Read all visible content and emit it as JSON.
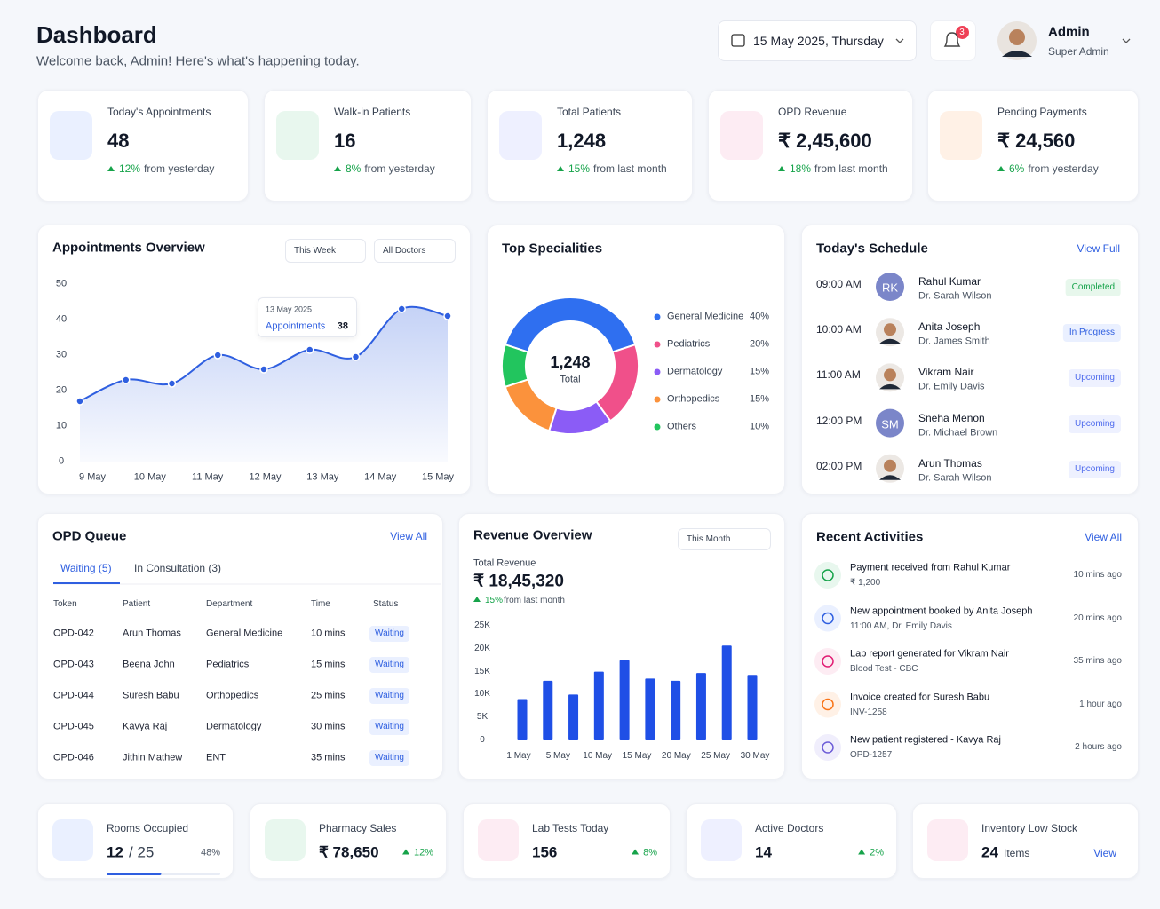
{
  "header": {
    "title": "Dashboard",
    "subtitle": "Welcome back, Admin! Here's what's happening today.",
    "date": "15 May 2025, Thursday",
    "notifications": "3",
    "user_name": "Admin",
    "user_role": "Super Admin"
  },
  "stats": [
    {
      "label": "Today's Appointments",
      "value": "48",
      "change": "12%",
      "note": "from yesterday",
      "icon_color": "#2f5fe0",
      "icon_bg": "#eaf0ff"
    },
    {
      "label": "Walk-in Patients",
      "value": "16",
      "change": "8%",
      "note": "from yesterday",
      "icon_color": "#16a34a",
      "icon_bg": "#e8f7ee"
    },
    {
      "label": "Total Patients",
      "value": "1,248",
      "change": "15%",
      "note": "from last month",
      "icon_color": "#4f46e5",
      "icon_bg": "#eef0ff"
    },
    {
      "label": "OPD Revenue",
      "value": "₹ 2,45,600",
      "change": "18%",
      "note": "from last month",
      "icon_color": "#e11d74",
      "icon_bg": "#fdecf3"
    },
    {
      "label": "Pending Payments",
      "value": "₹ 24,560",
      "change": "6%",
      "note": "from yesterday",
      "icon_color": "#f97316",
      "icon_bg": "#fff1e6"
    }
  ],
  "appointments_overview": {
    "type": "line",
    "title": "Appointments Overview",
    "filters": [
      "This Week",
      "All Doctors"
    ],
    "x_labels": [
      "9 May",
      "10 May",
      "11 May",
      "12 May",
      "13 May",
      "14 May",
      "15 May"
    ],
    "values": [
      17,
      23,
      22,
      30,
      26,
      31.5,
      29.5,
      43,
      41
    ],
    "ylim": [
      0,
      50
    ],
    "yticks": [
      0,
      10,
      20,
      30,
      40,
      50
    ],
    "color": "#2f5fe0",
    "tooltip": {
      "date": "13 May 2025",
      "label": "Appointments",
      "value": "38"
    }
  },
  "top_specialities": {
    "type": "pie",
    "title": "Top Specialities",
    "total": "1,248",
    "total_label": "Total",
    "categories": [
      "General Medicine",
      "Pediatrics",
      "Dermatology",
      "Orthopedics",
      "Others"
    ],
    "values": [
      40,
      20,
      15,
      15,
      10
    ],
    "value_labels": [
      "40%",
      "20%",
      "15%",
      "15%",
      "10%"
    ],
    "colors": [
      "#2f6ff0",
      "#f0508a",
      "#8b5cf6",
      "#fb923c",
      "#22c55e"
    ]
  },
  "schedule": {
    "title": "Today's Schedule",
    "link": "View Full",
    "items": [
      {
        "time": "09:00 AM",
        "initials": "RK",
        "name": "Rahul Kumar",
        "doctor": "Dr. Sarah Wilson",
        "status": "Completed",
        "status_color": "#16a34a",
        "status_bg": "#e7f7ec"
      },
      {
        "time": "10:00 AM",
        "name": "Anita Joseph",
        "doctor": "Dr. James Smith",
        "status": "In Progress",
        "status_color": "#2f5fe0",
        "status_bg": "#eaf0ff"
      },
      {
        "time": "11:00 AM",
        "name": "Vikram Nair",
        "doctor": "Dr. Emily Davis",
        "status": "Upcoming",
        "status_color": "#4f6bed",
        "status_bg": "#eef1ff"
      },
      {
        "time": "12:00 PM",
        "initials": "SM",
        "name": "Sneha Menon",
        "doctor": "Dr. Michael Brown",
        "status": "Upcoming",
        "status_color": "#4f6bed",
        "status_bg": "#eef1ff"
      },
      {
        "time": "02:00 PM",
        "name": "Arun Thomas",
        "doctor": "Dr. Sarah Wilson",
        "status": "Upcoming",
        "status_color": "#4f6bed",
        "status_bg": "#eef1ff"
      }
    ]
  },
  "opd_queue": {
    "title": "OPD Queue",
    "link": "View All",
    "tabs": [
      "Waiting (5)",
      "In Consultation (3)"
    ],
    "columns": [
      "Token",
      "Patient",
      "Department",
      "Time",
      "Status"
    ],
    "rows": [
      [
        "OPD-042",
        "Arun Thomas",
        "General Medicine",
        "10 mins",
        "Waiting"
      ],
      [
        "OPD-043",
        "Beena John",
        "Pediatrics",
        "15 mins",
        "Waiting"
      ],
      [
        "OPD-044",
        "Suresh Babu",
        "Orthopedics",
        "25 mins",
        "Waiting"
      ],
      [
        "OPD-045",
        "Kavya Raj",
        "Dermatology",
        "30 mins",
        "Waiting"
      ],
      [
        "OPD-046",
        "Jithin Mathew",
        "ENT",
        "35 mins",
        "Waiting"
      ]
    ]
  },
  "revenue_overview": {
    "type": "bar",
    "title": "Revenue Overview",
    "filter": "This Month",
    "total_label": "Total Revenue",
    "total": "₹ 18,45,320",
    "change": "15%",
    "note": "from last month",
    "x_labels": [
      "1 May",
      "5 May",
      "10 May",
      "15 May",
      "20 May",
      "25 May",
      "30 May"
    ],
    "values": [
      9000,
      13000,
      10000,
      15000,
      17500,
      13500,
      13000,
      14700,
      20700,
      14300
    ],
    "ylim": [
      0,
      25000
    ],
    "yticks": [
      0,
      {
        "value": 5000,
        "label": "5K"
      },
      {
        "value": 10000,
        "label": "10K"
      },
      {
        "value": 15000,
        "label": "15K"
      },
      {
        "value": 20000,
        "label": "20K"
      },
      {
        "value": 25000,
        "label": "25K"
      }
    ],
    "color": "#1f4fe6"
  },
  "recent_activities": {
    "title": "Recent Activities",
    "link": "View All",
    "items": [
      {
        "title": "Payment received from Rahul Kumar",
        "detail": "₹ 1,200",
        "time": "10 mins ago",
        "color": "#16a34a",
        "bg": "#e8f7ee"
      },
      {
        "title": "New appointment booked by Anita Joseph",
        "detail": "11:00 AM, Dr. Emily Davis",
        "time": "20 mins ago",
        "color": "#2f5fe0",
        "bg": "#eaf0ff"
      },
      {
        "title": "Lab report generated for Vikram Nair",
        "detail": "Blood Test - CBC",
        "time": "35 mins ago",
        "color": "#e11d74",
        "bg": "#fdecf3"
      },
      {
        "title": "Invoice created for Suresh Babu",
        "detail": "INV-1258",
        "time": "1 hour ago",
        "color": "#f97316",
        "bg": "#fff1e6"
      },
      {
        "title": "New patient registered - Kavya Raj",
        "detail": "OPD-1257",
        "time": "2 hours ago",
        "color": "#6d5dd8",
        "bg": "#f0eefc"
      }
    ]
  },
  "bottom_stats": [
    {
      "label": "Rooms Occupied",
      "value": "12",
      "total": "/ 25",
      "occupancy": 48,
      "occupancy_label": "48%",
      "icon_color": "#2f5fe0",
      "icon_bg": "#eaf0ff"
    },
    {
      "label": "Pharmacy Sales",
      "value": "₹ 78,650",
      "change": "12%",
      "icon_color": "#16a34a",
      "icon_bg": "#e8f7ee"
    },
    {
      "label": "Lab Tests Today",
      "value": "156",
      "change": "8%",
      "icon_color": "#e11d74",
      "icon_bg": "#fdecf3"
    },
    {
      "label": "Active Doctors",
      "value": "14",
      "change": "2%",
      "icon_color": "#4f46e5",
      "icon_bg": "#eef0ff"
    },
    {
      "label": "Inventory Low Stock",
      "value": "24",
      "unit": "Items",
      "link": "View",
      "icon_color": "#e11d74",
      "icon_bg": "#fdecf3"
    }
  ]
}
